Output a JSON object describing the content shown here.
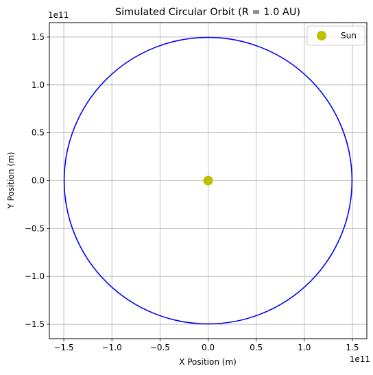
{
  "chart_data": {
    "type": "line",
    "title": "Simulated Circular Orbit (R = 1.0 AU)",
    "xlabel": "X Position (m)",
    "ylabel": "Y Position (m)",
    "x_offset_label": "1e11",
    "y_offset_label": "1e11",
    "xlim": [
      -165000000000.0,
      165000000000.0
    ],
    "ylim": [
      -165000000000.0,
      165000000000.0
    ],
    "xticks": [
      -150000000000.0,
      -100000000000.0,
      -50000000000.0,
      0,
      50000000000.0,
      100000000000.0,
      150000000000.0
    ],
    "yticks": [
      -150000000000.0,
      -100000000000.0,
      -50000000000.0,
      0,
      50000000000.0,
      100000000000.0,
      150000000000.0
    ],
    "xtick_labels": [
      "−1.5",
      "−1.0",
      "−0.5",
      "0.0",
      "0.5",
      "1.0",
      "1.5"
    ],
    "ytick_labels": [
      "−1.5",
      "−1.0",
      "−0.5",
      "0.0",
      "0.5",
      "1.0",
      "1.5"
    ],
    "grid": true,
    "legend": "top-right",
    "series": [
      {
        "kind": "circle",
        "center": [
          0,
          0
        ],
        "radius": 149600000000.0,
        "color": "#0000ff"
      },
      {
        "name": "Sun",
        "kind": "point",
        "x": [
          0
        ],
        "y": [
          0
        ],
        "color": "#bfbf00"
      }
    ]
  }
}
